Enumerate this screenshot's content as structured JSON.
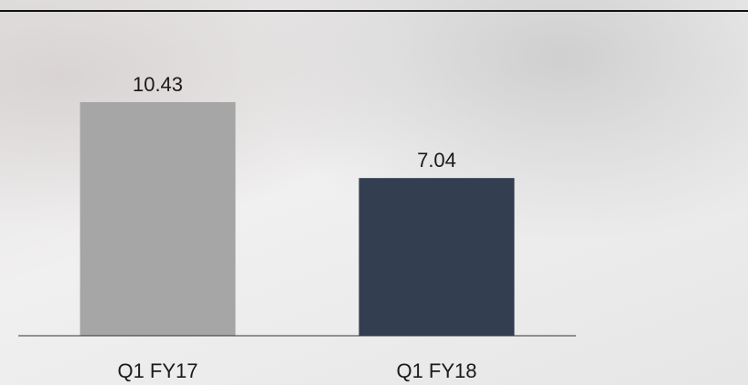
{
  "chart_data": {
    "type": "bar",
    "categories": [
      "Q1 FY17",
      "Q1 FY18"
    ],
    "values": [
      10.43,
      7.04
    ],
    "colors": [
      "#a6a6a6",
      "#333f50"
    ],
    "ylim": [
      0,
      12
    ]
  }
}
